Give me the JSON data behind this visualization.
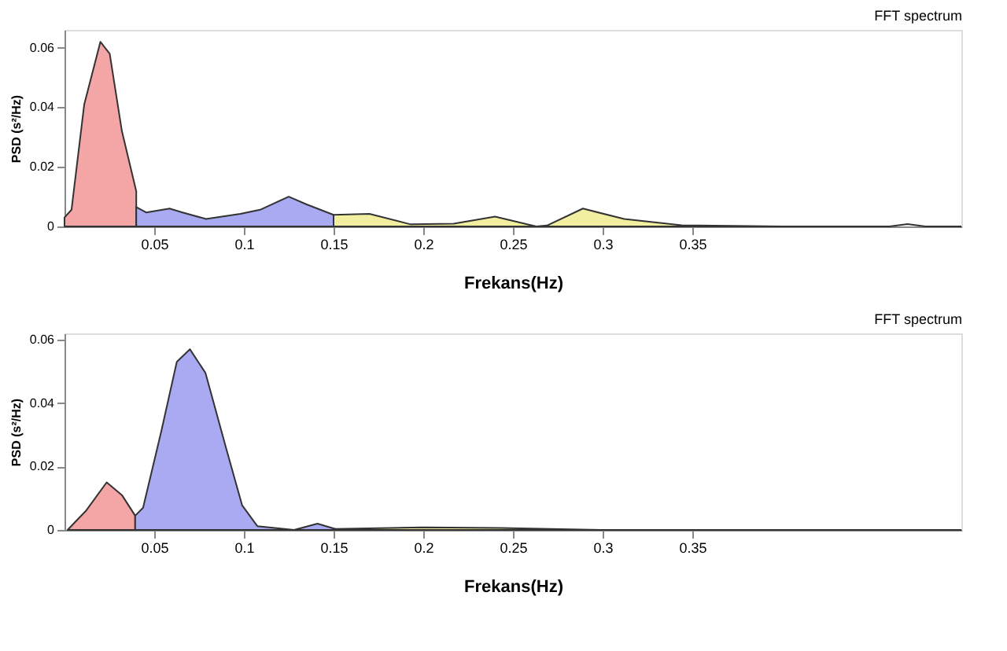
{
  "chart_data": [
    {
      "type": "area",
      "title": "FFT spectrum",
      "xlabel": "Frekans(Hz)",
      "ylabel": "PSD (s²/Hz)",
      "xlim": [
        0,
        0.5
      ],
      "ylim": [
        0,
        0.066
      ],
      "xticks": [
        0.05,
        0.1,
        0.15,
        0.2,
        0.25,
        0.3,
        0.35
      ],
      "yticks": [
        0,
        0.02,
        0.04,
        0.06
      ],
      "grid": false,
      "series": [
        {
          "color": "#f4a5a5",
          "x": [
            0,
            0.0039,
            0.011,
            0.02,
            0.0252,
            0.032,
            0.04
          ],
          "values": [
            0.003,
            0.0056,
            0.041,
            0.062,
            0.058,
            0.032,
            0.0118
          ]
        },
        {
          "color": "#aaaaf2",
          "x": [
            0.04,
            0.0455,
            0.0586,
            0.0658,
            0.0789,
            0.098,
            0.109,
            0.125,
            0.135,
            0.15
          ],
          "values": [
            0.0065,
            0.0047,
            0.006,
            0.0047,
            0.0025,
            0.0042,
            0.0056,
            0.01,
            0.0074,
            0.0039
          ]
        },
        {
          "color": "#f2f0a0",
          "x": [
            0.15,
            0.17,
            0.193,
            0.217,
            0.24,
            0.263,
            0.269,
            0.289,
            0.312,
            0.344,
            0.4
          ],
          "values": [
            0.0039,
            0.0042,
            0.0007,
            0.0009,
            0.0033,
            0,
            0.0003,
            0.006,
            0.0025,
            0.0004,
            0
          ]
        },
        {
          "type": "line",
          "color": "#333333",
          "x": [
            0.4,
            0.46,
            0.47,
            0.48,
            0.5
          ],
          "values": [
            0,
            0,
            0.0008,
            0,
            0
          ]
        }
      ]
    },
    {
      "type": "area",
      "title": "FFT spectrum",
      "xlabel": "Frekans(Hz)",
      "ylabel": "PSD (s²/Hz)",
      "xlim": [
        0,
        0.5
      ],
      "ylim": [
        0,
        0.062
      ],
      "xticks": [
        0.05,
        0.1,
        0.15,
        0.2,
        0.25,
        0.3,
        0.35
      ],
      "yticks": [
        0,
        0.02,
        0.04,
        0.06
      ],
      "grid": false,
      "series": [
        {
          "color": "#f4a5a5",
          "x": [
            0.0017,
            0.0119,
            0.0235,
            0.032,
            0.0394
          ],
          "values": [
            0,
            0.006,
            0.015,
            0.011,
            0.0045
          ]
        },
        {
          "color": "#aaaaf2",
          "x": [
            0.0394,
            0.0438,
            0.0539,
            0.0626,
            0.0699,
            0.0786,
            0.09,
            0.099,
            0.1075,
            0.128,
            0.141,
            0.151
          ],
          "values": [
            0.0045,
            0.007,
            0.031,
            0.053,
            0.057,
            0.0495,
            0.026,
            0.0078,
            0.0012,
            0,
            0.002,
            0.0003
          ]
        },
        {
          "color": "#f2f0a0",
          "x": [
            0.151,
            0.2,
            0.243,
            0.3,
            0.4
          ],
          "values": [
            0.0003,
            0.0008,
            0.0006,
            0,
            0
          ]
        },
        {
          "type": "line",
          "color": "#333333",
          "x": [
            0.4,
            0.5
          ],
          "values": [
            0,
            0
          ]
        }
      ]
    }
  ]
}
